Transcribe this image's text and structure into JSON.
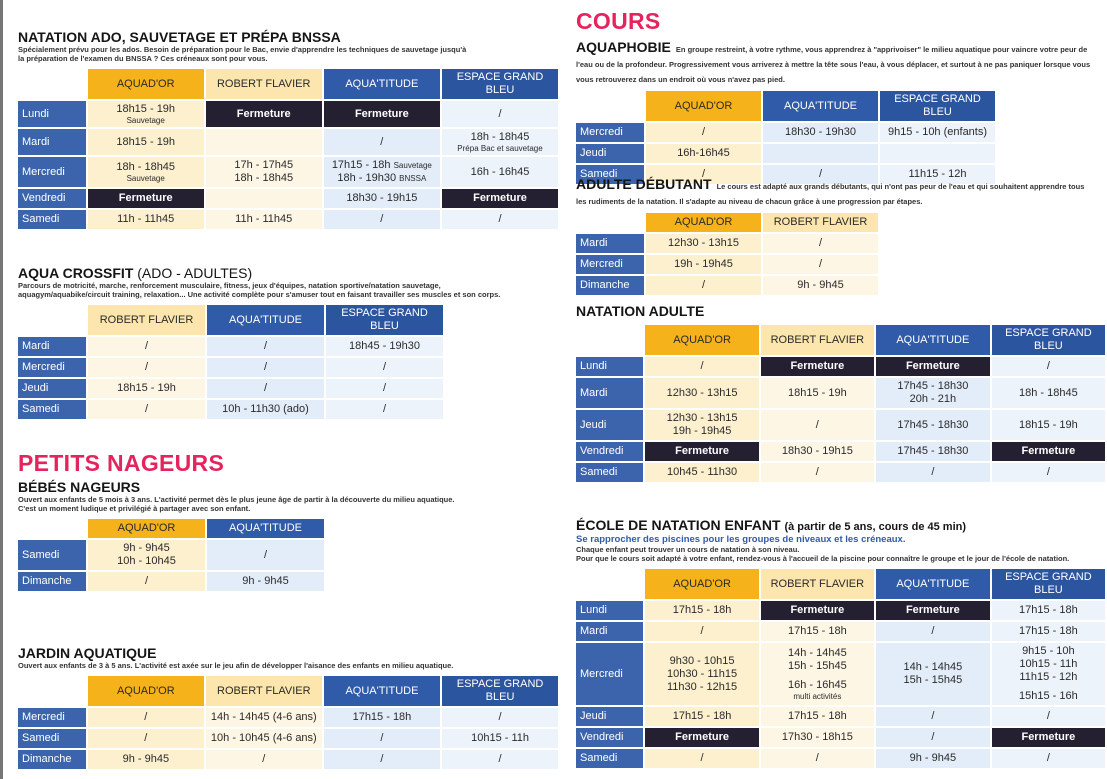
{
  "left": [
    {
      "title": "NATATION ADO, SAUVETAGE ET PRÉPA BNSSA",
      "desc": [
        "Spécialement prévu pour les ados. Besoin de préparation pour le Bac, envie d'apprendre les techniques de sauvetage jusqu'à",
        "la préparation de l'examen du BNSSA ? Ces créneaux sont pour vous."
      ],
      "table": {
        "columns": [
          {
            "name": "AQUAD'OR",
            "color": "#f6b21a",
            "tint": "#fdf0cf"
          },
          {
            "name": "ROBERT FLAVIER",
            "color": "#fde6ad",
            "tint": "#fef6e4"
          },
          {
            "name": "AQUA'TITUDE",
            "color": "#2f5ba8",
            "tint": "#e3edf9"
          },
          {
            "name": "ESPACE GRAND BLEU",
            "color": "#2c559f",
            "tint": "#edf3fb"
          }
        ],
        "rows": [
          {
            "label": "Lundi",
            "cells": [
              [
                "18h15 - 19h",
                {
                  "s": "Sauvetage"
                }
              ],
              {
                "closed": "Fermeture"
              },
              {
                "closed": "Fermeture"
              },
              [
                "/"
              ]
            ]
          },
          {
            "label": "Mardi",
            "cells": [
              [
                "18h15 - 19h"
              ],
              [],
              [
                "/"
              ],
              [
                "18h - 18h45",
                {
                  "s": "Prépa Bac et sauvetage"
                }
              ]
            ]
          },
          {
            "label": "Mercredi",
            "cells": [
              [
                "18h - 18h45",
                {
                  "s": "Sauvetage"
                }
              ],
              [
                "17h - 17h45",
                "18h - 18h45"
              ],
              [
                {
                  "t": "17h15 - 18h",
                  "s": "Sauvetage"
                },
                {
                  "t": "18h - 19h30",
                  "s": "BNSSA"
                }
              ],
              [
                "16h - 16h45"
              ]
            ]
          },
          {
            "label": "Vendredi",
            "cells": [
              {
                "closed": "Fermeture"
              },
              [],
              [
                "18h30 - 19h15"
              ],
              {
                "closed": "Fermeture"
              }
            ]
          },
          {
            "label": "Samedi",
            "cells": [
              [
                "11h - 11h45"
              ],
              [
                "11h - 11h45"
              ],
              [
                "/"
              ],
              [
                "/"
              ]
            ]
          }
        ]
      }
    },
    {
      "title": "AQUA CROSSFIT",
      "title_suffix": "(ADO - ADULTES)",
      "desc": [
        "Parcours de motricité, marche, renforcement musculaire, fitness, jeux d'équipes, natation sportive/natation sauvetage,",
        "aquagym/aquabike/circuit training, relaxation... Une activité complète pour s'amuser tout en faisant travailler ses muscles et son corps."
      ],
      "table": {
        "columns": [
          {
            "name": "ROBERT FLAVIER",
            "color": "#fde6ad",
            "tint": "#fef6e4"
          },
          {
            "name": "AQUA'TITUDE",
            "color": "#2f5ba8",
            "tint": "#e3edf9"
          },
          {
            "name": "ESPACE GRAND BLEU",
            "color": "#2c559f",
            "tint": "#edf3fb"
          }
        ],
        "rows": [
          {
            "label": "Mardi",
            "cells": [
              [
                "/"
              ],
              [
                "/"
              ],
              [
                "18h45 - 19h30"
              ]
            ]
          },
          {
            "label": "Mercredi",
            "cells": [
              [
                "/"
              ],
              [
                "/"
              ],
              [
                "/"
              ]
            ]
          },
          {
            "label": "Jeudi",
            "cells": [
              [
                "18h15 - 19h"
              ],
              [
                "/"
              ],
              [
                "/"
              ]
            ]
          },
          {
            "label": "Samedi",
            "cells": [
              [
                "/"
              ],
              [
                "10h - 11h30 (ado)"
              ],
              [
                "/"
              ]
            ]
          }
        ]
      }
    },
    {
      "heading": "PETITS NAGEURS"
    },
    {
      "title": "BÉBÉS NAGEURS",
      "desc": [
        "Ouvert aux enfants de 5 mois à 3 ans. L'activité permet dès le plus jeune âge de partir à la découverte du milieu aquatique.",
        "C'est un moment ludique et privilégié à partager avec son enfant."
      ],
      "table": {
        "columns": [
          {
            "name": "AQUAD'OR",
            "color": "#f6b21a",
            "tint": "#fdf0cf"
          },
          {
            "name": "AQUA'TITUDE",
            "color": "#2f5ba8",
            "tint": "#e3edf9"
          }
        ],
        "rows": [
          {
            "label": "Samedi",
            "cells": [
              [
                "9h - 9h45",
                "10h - 10h45"
              ],
              [
                "/"
              ]
            ]
          },
          {
            "label": "Dimanche",
            "cells": [
              [
                "/"
              ],
              [
                "9h - 9h45"
              ]
            ]
          }
        ]
      }
    },
    {
      "title": "JARDIN AQUATIQUE",
      "desc": [
        "Ouvert aux enfants de 3 à 5 ans. L'activité est axée sur le jeu afin de développer l'aisance des enfants en milieu aquatique."
      ],
      "table": {
        "columns": [
          {
            "name": "AQUAD'OR",
            "color": "#f6b21a",
            "tint": "#fdf0cf"
          },
          {
            "name": "ROBERT FLAVIER",
            "color": "#fde6ad",
            "tint": "#fef6e4"
          },
          {
            "name": "AQUA'TITUDE",
            "color": "#2f5ba8",
            "tint": "#e3edf9"
          },
          {
            "name": "ESPACE GRAND BLEU",
            "color": "#2c559f",
            "tint": "#edf3fb"
          }
        ],
        "rows": [
          {
            "label": "Mercredi",
            "cells": [
              [
                "/"
              ],
              [
                "14h - 14h45 (4-6 ans)"
              ],
              [
                "17h15 - 18h"
              ],
              [
                "/"
              ]
            ]
          },
          {
            "label": "Samedi",
            "cells": [
              [
                "/"
              ],
              [
                "10h - 10h45 (4-6 ans)"
              ],
              [
                "/"
              ],
              [
                "10h15 - 11h"
              ]
            ]
          },
          {
            "label": "Dimanche",
            "cells": [
              [
                "9h - 9h45"
              ],
              [
                "/"
              ],
              [
                "/"
              ],
              [
                "/"
              ]
            ]
          }
        ]
      }
    }
  ],
  "right": [
    {
      "heading": "COURS"
    },
    {
      "title": "AQUAPHOBIE",
      "lead": "En groupe restreint, à votre rythme, vous apprendrez à \"apprivoiser\" le milieu aquatique pour vaincre votre peur de l'eau ou de la profondeur. Progressivement vous arriverez à mettre la tête sous l'eau, à vous déplacer, et surtout à ne pas paniquer lorsque vous vous retrouverez dans un endroit où vous n'avez pas pied.",
      "table": {
        "columns": [
          {
            "name": "AQUAD'OR",
            "color": "#f6b21a",
            "tint": "#fdf0cf"
          },
          {
            "name": "AQUA'TITUDE",
            "color": "#2f5ba8",
            "tint": "#e3edf9"
          },
          {
            "name": "ESPACE GRAND BLEU",
            "color": "#2c559f",
            "tint": "#edf3fb"
          }
        ],
        "rows": [
          {
            "label": "Mercredi",
            "cells": [
              [
                "/"
              ],
              [
                "18h30 - 19h30"
              ],
              [
                "9h15 - 10h (enfants)"
              ]
            ]
          },
          {
            "label": "Jeudi",
            "cells": [
              [
                "16h-16h45"
              ],
              [],
              []
            ]
          },
          {
            "label": "Samedi",
            "cells": [
              [
                "/"
              ],
              [
                "/"
              ],
              [
                "11h15 - 12h"
              ]
            ]
          }
        ]
      }
    },
    {
      "title": "ADULTE DÉBUTANT",
      "lead": "Le cours est adapté aux grands débutants, qui n'ont pas peur de l'eau et qui souhaitent apprendre tous les rudiments de la natation. Il s'adapte au niveau de chacun grâce à une progression par étapes.",
      "table": {
        "columns": [
          {
            "name": "AQUAD'OR",
            "color": "#f6b21a",
            "tint": "#fdf0cf"
          },
          {
            "name": "ROBERT FLAVIER",
            "color": "#fde6ad",
            "tint": "#fef6e4"
          }
        ],
        "rows": [
          {
            "label": "Mardi",
            "cells": [
              [
                "12h30 - 13h15"
              ],
              [
                "/"
              ]
            ]
          },
          {
            "label": "Mercredi",
            "cells": [
              [
                "19h - 19h45"
              ],
              [
                "/"
              ]
            ]
          },
          {
            "label": "Dimanche",
            "cells": [
              [
                "/"
              ],
              [
                "9h - 9h45"
              ]
            ]
          }
        ]
      }
    },
    {
      "title": "NATATION ADULTE",
      "table": {
        "columns": [
          {
            "name": "AQUAD'OR",
            "color": "#f6b21a",
            "tint": "#fdf0cf"
          },
          {
            "name": "ROBERT FLAVIER",
            "color": "#fde6ad",
            "tint": "#fef6e4"
          },
          {
            "name": "AQUA'TITUDE",
            "color": "#2f5ba8",
            "tint": "#e3edf9"
          },
          {
            "name": "ESPACE GRAND BLEU",
            "color": "#2c559f",
            "tint": "#edf3fb"
          }
        ],
        "rows": [
          {
            "label": "Lundi",
            "cells": [
              [
                "/"
              ],
              {
                "closed": "Fermeture"
              },
              {
                "closed": "Fermeture"
              },
              [
                "/"
              ]
            ]
          },
          {
            "label": "Mardi",
            "cells": [
              [
                "12h30 - 13h15"
              ],
              [
                "18h15 - 19h"
              ],
              [
                "17h45 - 18h30",
                "20h - 21h"
              ],
              [
                "18h - 18h45"
              ]
            ]
          },
          {
            "label": "Jeudi",
            "cells": [
              [
                "12h30 - 13h15",
                "19h - 19h45"
              ],
              [
                "/"
              ],
              [
                "17h45 - 18h30"
              ],
              [
                "18h15 - 19h"
              ]
            ]
          },
          {
            "label": "Vendredi",
            "cells": [
              {
                "closed": "Fermeture"
              },
              [
                "18h30 - 19h15"
              ],
              [
                "17h45 - 18h30"
              ],
              {
                "closed": "Fermeture"
              }
            ]
          },
          {
            "label": "Samedi",
            "cells": [
              [
                "10h45 - 11h30"
              ],
              [
                "/"
              ],
              [
                "/"
              ],
              [
                "/"
              ]
            ]
          }
        ]
      }
    },
    {
      "title": "ÉCOLE DE NATATION ENFANT",
      "title_suffix": "(à partir de 5 ans, cours de 45 min)",
      "subtitle": "Se rapprocher des piscines pour les groupes de niveaux et les créneaux.",
      "desc": [
        "Chaque enfant peut trouver un cours de natation à son niveau.",
        "Pour que le cours soit adapté à votre enfant, rendez-vous à l'accueil de la piscine pour connaître le groupe et le jour de l'école de natation."
      ],
      "table": {
        "columns": [
          {
            "name": "AQUAD'OR",
            "color": "#f6b21a",
            "tint": "#fdf0cf"
          },
          {
            "name": "ROBERT FLAVIER",
            "color": "#fde6ad",
            "tint": "#fef6e4"
          },
          {
            "name": "AQUA'TITUDE",
            "color": "#2f5ba8",
            "tint": "#e3edf9"
          },
          {
            "name": "ESPACE GRAND BLEU",
            "color": "#2c559f",
            "tint": "#edf3fb"
          }
        ],
        "rows": [
          {
            "label": "Lundi",
            "cells": [
              [
                "17h15 - 18h"
              ],
              {
                "closed": "Fermeture"
              },
              {
                "closed": "Fermeture"
              },
              [
                "17h15 - 18h"
              ]
            ]
          },
          {
            "label": "Mardi",
            "cells": [
              [
                "/"
              ],
              [
                "17h15 - 18h"
              ],
              [
                "/"
              ],
              [
                "17h15 - 18h"
              ]
            ]
          },
          {
            "label": "Mercredi",
            "cells": [
              [
                "9h30 - 10h15",
                "10h30 - 11h15",
                "11h30 - 12h15"
              ],
              [
                "14h - 14h45",
                "15h - 15h45",
                "16h - 16h45",
                {
                  "s": "multi activités"
                }
              ],
              [
                "14h - 14h45",
                "15h - 15h45"
              ],
              [
                "9h15 - 10h",
                "10h15 - 11h",
                "11h15 - 12h",
                "15h15 - 16h"
              ]
            ]
          },
          {
            "label": "Jeudi",
            "cells": [
              [
                "17h15 - 18h"
              ],
              [
                "17h15 - 18h"
              ],
              [
                "/"
              ],
              [
                "/"
              ]
            ]
          },
          {
            "label": "Vendredi",
            "cells": [
              {
                "closed": "Fermeture"
              },
              [
                "17h30 - 18h15"
              ],
              [
                "/"
              ],
              {
                "closed": "Fermeture"
              }
            ]
          },
          {
            "label": "Samedi",
            "cells": [
              [
                "/"
              ],
              [
                "/"
              ],
              [
                "9h - 9h45"
              ],
              [
                "/"
              ]
            ]
          }
        ]
      }
    }
  ]
}
